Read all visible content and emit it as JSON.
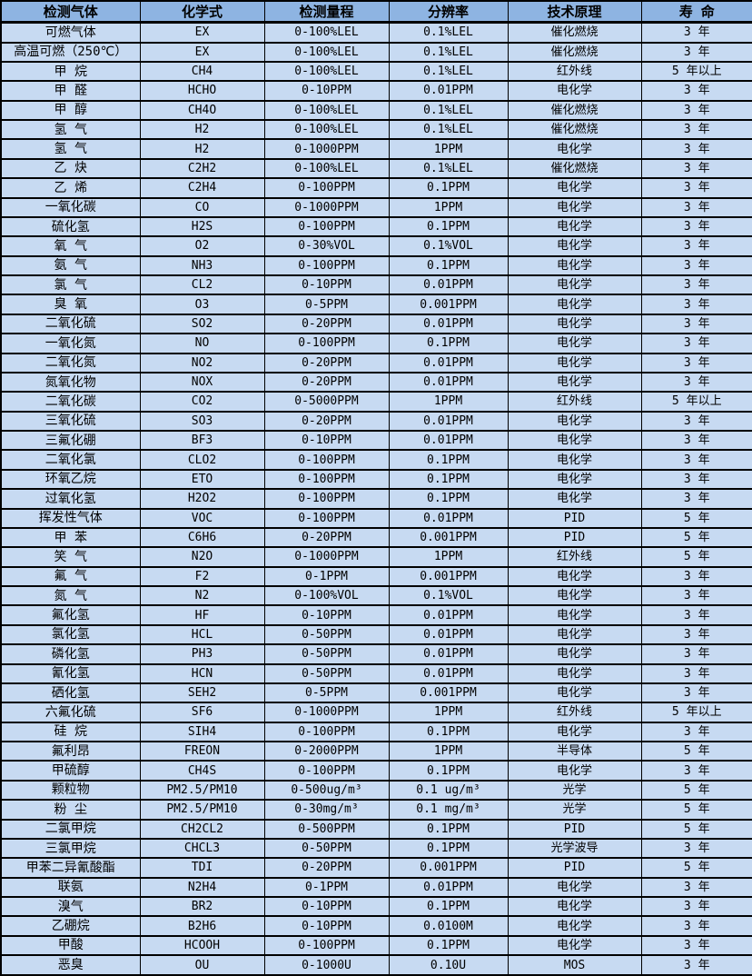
{
  "table": {
    "title": "gas-detection-specification-table",
    "colors": {
      "header_bg": "#8EB4E2",
      "row_bg": "#C7DAF2",
      "border": "#000000",
      "text": "#000000"
    },
    "columns": [
      {
        "key": "gas",
        "label": "检测气体"
      },
      {
        "key": "formula",
        "label": "化学式"
      },
      {
        "key": "range",
        "label": "检测量程"
      },
      {
        "key": "resolution",
        "label": "分辨率"
      },
      {
        "key": "principle",
        "label": "技术原理"
      },
      {
        "key": "lifespan",
        "label": "寿 命"
      }
    ],
    "rows": [
      {
        "gas": "可燃气体",
        "formula": "EX",
        "range": "0-100%LEL",
        "resolution": "0.1%LEL",
        "principle": "催化燃烧",
        "lifespan": "3 年"
      },
      {
        "gas": "高温可燃（250℃）",
        "formula": "EX",
        "range": "0-100%LEL",
        "resolution": "0.1%LEL",
        "principle": "催化燃烧",
        "lifespan": "3 年"
      },
      {
        "gas": "甲 烷",
        "formula": "CH4",
        "range": "0-100%LEL",
        "resolution": "0.1%LEL",
        "principle": "红外线",
        "lifespan": "5 年以上"
      },
      {
        "gas": "甲 醛",
        "formula": "HCHO",
        "range": "0-10PPM",
        "resolution": "0.01PPM",
        "principle": "电化学",
        "lifespan": "3 年"
      },
      {
        "gas": "甲 醇",
        "formula": "CH4O",
        "range": "0-100%LEL",
        "resolution": "0.1%LEL",
        "principle": "催化燃烧",
        "lifespan": "3 年"
      },
      {
        "gas": "氢 气",
        "formula": "H2",
        "range": "0-100%LEL",
        "resolution": "0.1%LEL",
        "principle": "催化燃烧",
        "lifespan": "3 年"
      },
      {
        "gas": "氢 气",
        "formula": "H2",
        "range": "0-1000PPM",
        "resolution": "1PPM",
        "principle": "电化学",
        "lifespan": "3 年"
      },
      {
        "gas": "乙 炔",
        "formula": "C2H2",
        "range": "0-100%LEL",
        "resolution": "0.1%LEL",
        "principle": "催化燃烧",
        "lifespan": "3 年"
      },
      {
        "gas": "乙 烯",
        "formula": "C2H4",
        "range": "0-100PPM",
        "resolution": "0.1PPM",
        "principle": "电化学",
        "lifespan": "3 年"
      },
      {
        "gas": "一氧化碳",
        "formula": "CO",
        "range": "0-1000PPM",
        "resolution": "1PPM",
        "principle": "电化学",
        "lifespan": "3 年"
      },
      {
        "gas": "硫化氢",
        "formula": "H2S",
        "range": "0-100PPM",
        "resolution": "0.1PPM",
        "principle": "电化学",
        "lifespan": "3 年"
      },
      {
        "gas": "氧 气",
        "formula": "O2",
        "range": "0-30%VOL",
        "resolution": "0.1%VOL",
        "principle": "电化学",
        "lifespan": "3 年"
      },
      {
        "gas": "氨 气",
        "formula": "NH3",
        "range": "0-100PPM",
        "resolution": "0.1PPM",
        "principle": "电化学",
        "lifespan": "3 年"
      },
      {
        "gas": "氯 气",
        "formula": "CL2",
        "range": "0-10PPM",
        "resolution": "0.01PPM",
        "principle": "电化学",
        "lifespan": "3 年"
      },
      {
        "gas": "臭 氧",
        "formula": "O3",
        "range": "0-5PPM",
        "resolution": "0.001PPM",
        "principle": "电化学",
        "lifespan": "3 年"
      },
      {
        "gas": "二氧化硫",
        "formula": "SO2",
        "range": "0-20PPM",
        "resolution": "0.01PPM",
        "principle": "电化学",
        "lifespan": "3 年"
      },
      {
        "gas": "一氧化氮",
        "formula": "NO",
        "range": "0-100PPM",
        "resolution": "0.1PPM",
        "principle": "电化学",
        "lifespan": "3 年"
      },
      {
        "gas": "二氧化氮",
        "formula": "NO2",
        "range": "0-20PPM",
        "resolution": "0.01PPM",
        "principle": "电化学",
        "lifespan": "3 年"
      },
      {
        "gas": "氮氧化物",
        "formula": "NOX",
        "range": "0-20PPM",
        "resolution": "0.01PPM",
        "principle": "电化学",
        "lifespan": "3 年"
      },
      {
        "gas": "二氧化碳",
        "formula": "CO2",
        "range": "0-5000PPM",
        "resolution": "1PPM",
        "principle": "红外线",
        "lifespan": "5 年以上"
      },
      {
        "gas": "三氧化硫",
        "formula": "SO3",
        "range": "0-20PPM",
        "resolution": "0.01PPM",
        "principle": "电化学",
        "lifespan": "3 年"
      },
      {
        "gas": "三氟化硼",
        "formula": "BF3",
        "range": "0-10PPM",
        "resolution": "0.01PPM",
        "principle": "电化学",
        "lifespan": "3 年"
      },
      {
        "gas": "二氧化氯",
        "formula": "CLO2",
        "range": "0-100PPM",
        "resolution": "0.1PPM",
        "principle": "电化学",
        "lifespan": "3 年"
      },
      {
        "gas": "环氧乙烷",
        "formula": "ETO",
        "range": "0-100PPM",
        "resolution": "0.1PPM",
        "principle": "电化学",
        "lifespan": "3 年"
      },
      {
        "gas": "过氧化氢",
        "formula": "H2O2",
        "range": "0-100PPM",
        "resolution": "0.1PPM",
        "principle": "电化学",
        "lifespan": "3 年"
      },
      {
        "gas": "挥发性气体",
        "formula": "VOC",
        "range": "0-100PPM",
        "resolution": "0.01PPM",
        "principle": "PID",
        "lifespan": "5 年"
      },
      {
        "gas": "甲 苯",
        "formula": "C6H6",
        "range": "0-20PPM",
        "resolution": "0.001PPM",
        "principle": "PID",
        "lifespan": "5 年"
      },
      {
        "gas": "笑 气",
        "formula": "N2O",
        "range": "0-1000PPM",
        "resolution": "1PPM",
        "principle": "红外线",
        "lifespan": "5 年"
      },
      {
        "gas": "氟 气",
        "formula": "F2",
        "range": "0-1PPM",
        "resolution": "0.001PPM",
        "principle": "电化学",
        "lifespan": "3 年"
      },
      {
        "gas": "氮 气",
        "formula": "N2",
        "range": "0-100%VOL",
        "resolution": "0.1%VOL",
        "principle": "电化学",
        "lifespan": "3 年"
      },
      {
        "gas": "氟化氢",
        "formula": "HF",
        "range": "0-10PPM",
        "resolution": "0.01PPM",
        "principle": "电化学",
        "lifespan": "3 年"
      },
      {
        "gas": "氯化氢",
        "formula": "HCL",
        "range": "0-50PPM",
        "resolution": "0.01PPM",
        "principle": "电化学",
        "lifespan": "3 年"
      },
      {
        "gas": "磷化氢",
        "formula": "PH3",
        "range": "0-50PPM",
        "resolution": "0.01PPM",
        "principle": "电化学",
        "lifespan": "3 年"
      },
      {
        "gas": "氰化氢",
        "formula": "HCN",
        "range": "0-50PPM",
        "resolution": "0.01PPM",
        "principle": "电化学",
        "lifespan": "3 年"
      },
      {
        "gas": "硒化氢",
        "formula": "SEH2",
        "range": "0-5PPM",
        "resolution": "0.001PPM",
        "principle": "电化学",
        "lifespan": "3 年"
      },
      {
        "gas": "六氟化硫",
        "formula": "SF6",
        "range": "0-1000PPM",
        "resolution": "1PPM",
        "principle": "红外线",
        "lifespan": "5 年以上"
      },
      {
        "gas": "硅 烷",
        "formula": "SIH4",
        "range": "0-100PPM",
        "resolution": "0.1PPM",
        "principle": "电化学",
        "lifespan": "3 年"
      },
      {
        "gas": "氟利昂",
        "formula": "FREON",
        "range": "0-2000PPM",
        "resolution": "1PPM",
        "principle": "半导体",
        "lifespan": "5 年"
      },
      {
        "gas": "甲硫醇",
        "formula": "CH4S",
        "range": "0-100PPM",
        "resolution": "0.1PPM",
        "principle": "电化学",
        "lifespan": "3 年"
      },
      {
        "gas": "颗粒物",
        "formula": "PM2.5/PM10",
        "range": "0-500ug/m³",
        "resolution": "0.1 ug/m³",
        "principle": "光学",
        "lifespan": "5 年"
      },
      {
        "gas": "粉 尘",
        "formula": "PM2.5/PM10",
        "range": "0-30mg/m³",
        "resolution": "0.1 mg/m³",
        "principle": "光学",
        "lifespan": "5 年"
      },
      {
        "gas": "二氯甲烷",
        "formula": "CH2CL2",
        "range": "0-500PPM",
        "resolution": "0.1PPM",
        "principle": "PID",
        "lifespan": "5 年"
      },
      {
        "gas": "三氯甲烷",
        "formula": "CHCL3",
        "range": "0-50PPM",
        "resolution": "0.1PPM",
        "principle": "光学波导",
        "lifespan": "3 年"
      },
      {
        "gas": "甲苯二异氰酸酯",
        "formula": "TDI",
        "range": "0-20PPM",
        "resolution": "0.001PPM",
        "principle": "PID",
        "lifespan": "5 年"
      },
      {
        "gas": "联氨",
        "formula": "N2H4",
        "range": "0-1PPM",
        "resolution": "0.01PPM",
        "principle": "电化学",
        "lifespan": "3 年"
      },
      {
        "gas": "溴气",
        "formula": "BR2",
        "range": "0-10PPM",
        "resolution": "0.1PPM",
        "principle": "电化学",
        "lifespan": "3 年"
      },
      {
        "gas": "乙硼烷",
        "formula": "B2H6",
        "range": "0-10PPM",
        "resolution": "0.0100M",
        "principle": "电化学",
        "lifespan": "3 年"
      },
      {
        "gas": "甲酸",
        "formula": "HCOOH",
        "range": "0-100PPM",
        "resolution": "0.1PPM",
        "principle": "电化学",
        "lifespan": "3 年"
      },
      {
        "gas": "恶臭",
        "formula": "OU",
        "range": "0-1000U",
        "resolution": "0.10U",
        "principle": "MOS",
        "lifespan": "3 年"
      }
    ]
  }
}
